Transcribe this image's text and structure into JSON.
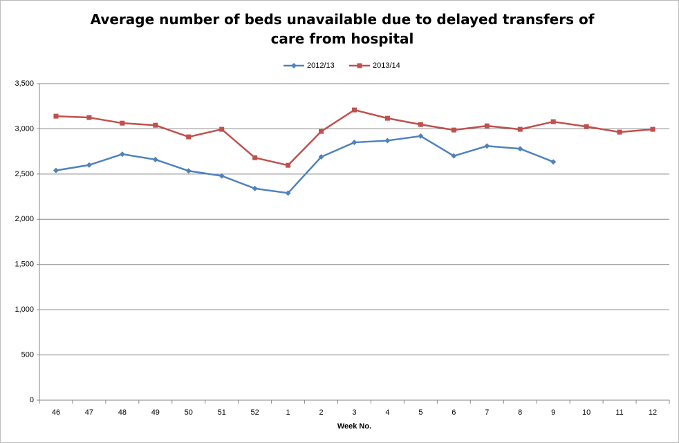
{
  "chart_data": {
    "type": "line",
    "title": "Average number of beds unavailable due to delayed transfers of care from hospital",
    "x_label": "Week No.",
    "categories": [
      "46",
      "47",
      "48",
      "49",
      "50",
      "51",
      "52",
      "1",
      "2",
      "3",
      "4",
      "5",
      "6",
      "7",
      "8",
      "9",
      "10",
      "11",
      "12"
    ],
    "series": [
      {
        "name": "2012/13",
        "color": "#4f81bd",
        "marker": "diamond",
        "values": [
          2540,
          2600,
          2720,
          2660,
          2535,
          2480,
          2340,
          2290,
          2690,
          2850,
          2870,
          2920,
          2700,
          2810,
          2780,
          2635,
          null,
          null,
          null
        ]
      },
      {
        "name": "2013/14",
        "color": "#c0504d",
        "marker": "square",
        "values": [
          3140,
          3125,
          3063,
          3040,
          2911,
          2995,
          2681,
          2597,
          2972,
          3209,
          3117,
          3048,
          2987,
          3033,
          2995,
          3079,
          3025,
          2964,
          2995
        ]
      }
    ],
    "ylim": [
      0,
      3500
    ],
    "yticks": [
      0,
      500,
      {
        "value": 1000,
        "label": "1,000"
      },
      {
        "value": 1500,
        "label": "1,500"
      },
      {
        "value": 2000,
        "label": "2,000"
      },
      {
        "value": 2500,
        "label": "2,500"
      },
      {
        "value": 3000,
        "label": "3,000"
      },
      {
        "value": 3500,
        "label": "3,500"
      }
    ],
    "grid": true,
    "legend": "top"
  }
}
